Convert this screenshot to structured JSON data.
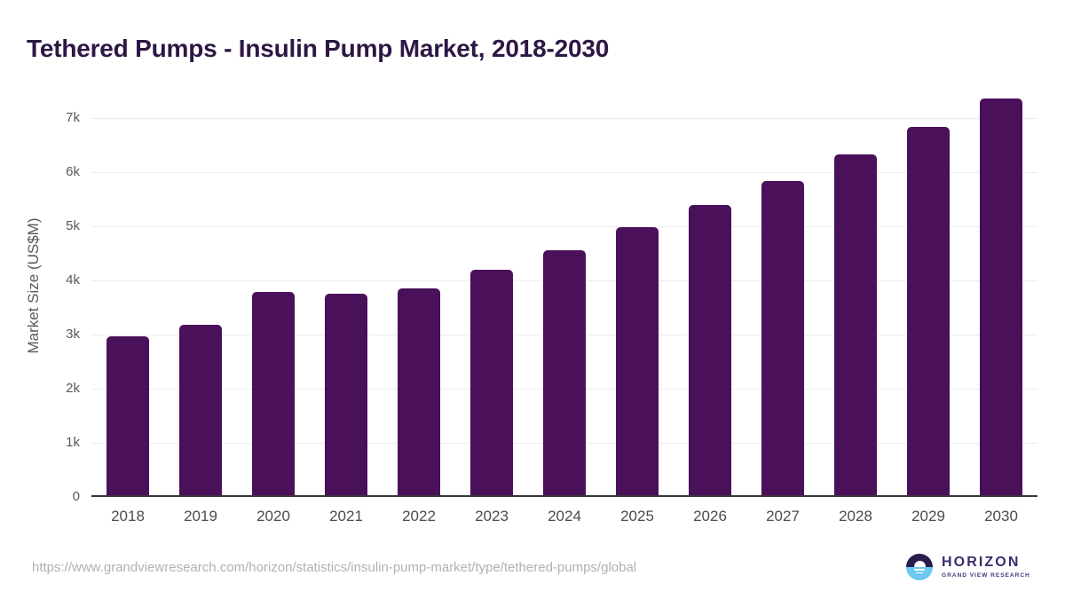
{
  "header": {
    "title": "Tethered Pumps - Insulin Pump Market, 2018-2030",
    "title_color": "#2d1745"
  },
  "chart_data": {
    "type": "bar",
    "title": "Tethered Pumps - Insulin Pump Market, 2018-2030",
    "categories": [
      "2018",
      "2019",
      "2020",
      "2021",
      "2022",
      "2023",
      "2024",
      "2025",
      "2026",
      "2027",
      "2028",
      "2029",
      "2030"
    ],
    "values": [
      2960,
      3180,
      3790,
      3750,
      3860,
      4190,
      4560,
      4980,
      5390,
      5835,
      6335,
      6840,
      7360
    ],
    "series_name": "Market Size",
    "xlabel": "",
    "ylabel": "Market Size (US$M)",
    "ylim": [
      0,
      7500
    ],
    "y_ticks": [
      {
        "value": 0,
        "label": "0"
      },
      {
        "value": 1000,
        "label": "1k"
      },
      {
        "value": 2000,
        "label": "2k"
      },
      {
        "value": 3000,
        "label": "3k"
      },
      {
        "value": 4000,
        "label": "4k"
      },
      {
        "value": 5000,
        "label": "5k"
      },
      {
        "value": 6000,
        "label": "6k"
      },
      {
        "value": 7000,
        "label": "7k"
      }
    ],
    "grid": true,
    "legend": "none",
    "bar_color": "#4a1059",
    "gridline_color": "#ececec",
    "axis_line_color": "#38363b",
    "tick_label_color": "#58595b",
    "x_tick_label_color": "#4c4c4e"
  },
  "footer": {
    "source_url": "https://www.grandviewresearch.com/horizon/statistics/insulin-pump-market/type/tethered-pumps/global",
    "logo": {
      "brand": "HORIZON",
      "subtitle": "GRAND VIEW RESEARCH",
      "brand_color": "#3d2c68",
      "subtitle_color": "#483878",
      "circle_top_color": "#2b1c4e",
      "circle_bottom_color": "#6cc9f2"
    }
  }
}
